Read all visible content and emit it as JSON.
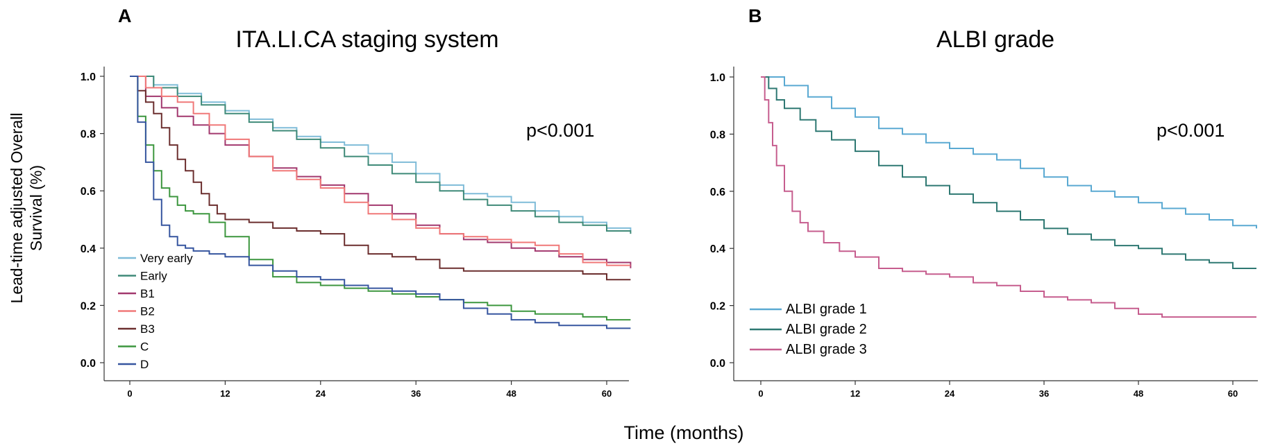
{
  "shared": {
    "xlabel": "Time (months)",
    "ylabel_line1": "Lead-time adjusted Overall",
    "ylabel_line2": "Survival (%)"
  },
  "chart_data": [
    {
      "type": "line",
      "panel_letter": "A",
      "title": "ITA.LI.CA staging system",
      "annotation": "p<0.001",
      "xlim": [
        -2.5,
        63
      ],
      "ylim": [
        -0.05,
        1.05
      ],
      "x_ticks": [
        0,
        12,
        24,
        36,
        48,
        60
      ],
      "y_ticks": [
        "0.0",
        "0.2",
        "0.4",
        "0.6",
        "0.8",
        "1.0"
      ],
      "legend_position": "bottom-left",
      "series": [
        {
          "name": "Very early",
          "color": "#7fbcd8",
          "x": [
            0,
            3,
            6,
            9,
            12,
            15,
            18,
            21,
            24,
            27,
            30,
            33,
            36,
            39,
            42,
            45,
            48,
            51,
            54,
            57,
            60,
            63
          ],
          "y": [
            1.0,
            0.97,
            0.94,
            0.91,
            0.88,
            0.85,
            0.82,
            0.79,
            0.77,
            0.76,
            0.73,
            0.7,
            0.66,
            0.62,
            0.59,
            0.58,
            0.56,
            0.53,
            0.51,
            0.49,
            0.47,
            0.46
          ]
        },
        {
          "name": "Early",
          "color": "#3f8a78",
          "x": [
            0,
            3,
            6,
            9,
            12,
            15,
            18,
            21,
            24,
            27,
            30,
            33,
            36,
            39,
            42,
            45,
            48,
            51,
            54,
            57,
            60,
            63
          ],
          "y": [
            1.0,
            0.96,
            0.93,
            0.9,
            0.87,
            0.84,
            0.81,
            0.78,
            0.75,
            0.72,
            0.69,
            0.66,
            0.63,
            0.6,
            0.57,
            0.55,
            0.53,
            0.51,
            0.49,
            0.48,
            0.46,
            0.45
          ]
        },
        {
          "name": "B1",
          "color": "#a2386e",
          "x": [
            0,
            2,
            4,
            6,
            8,
            10,
            12,
            15,
            18,
            21,
            24,
            27,
            30,
            33,
            36,
            39,
            42,
            45,
            48,
            51,
            54,
            57,
            60,
            63
          ],
          "y": [
            1.0,
            0.93,
            0.89,
            0.86,
            0.83,
            0.8,
            0.76,
            0.72,
            0.68,
            0.65,
            0.62,
            0.59,
            0.55,
            0.52,
            0.48,
            0.45,
            0.43,
            0.42,
            0.4,
            0.39,
            0.37,
            0.36,
            0.35,
            0.33
          ]
        },
        {
          "name": "B2",
          "color": "#f07878",
          "x": [
            0,
            2,
            4,
            6,
            8,
            10,
            12,
            15,
            18,
            21,
            24,
            27,
            30,
            33,
            36,
            39,
            42,
            45,
            48,
            51,
            54,
            57,
            60,
            63
          ],
          "y": [
            1.0,
            0.96,
            0.93,
            0.91,
            0.87,
            0.83,
            0.78,
            0.72,
            0.67,
            0.64,
            0.61,
            0.56,
            0.52,
            0.5,
            0.47,
            0.45,
            0.44,
            0.43,
            0.42,
            0.41,
            0.38,
            0.35,
            0.34,
            0.34
          ]
        },
        {
          "name": "B3",
          "color": "#6b2e2e",
          "x": [
            0,
            1,
            2,
            3,
            4,
            5,
            6,
            7,
            8,
            9,
            10,
            11,
            12,
            15,
            18,
            21,
            24,
            27,
            30,
            33,
            36,
            39,
            42,
            45,
            48,
            51,
            54,
            57,
            60,
            63
          ],
          "y": [
            1.0,
            0.95,
            0.91,
            0.87,
            0.82,
            0.76,
            0.71,
            0.67,
            0.63,
            0.59,
            0.55,
            0.52,
            0.5,
            0.49,
            0.47,
            0.46,
            0.45,
            0.41,
            0.38,
            0.37,
            0.36,
            0.33,
            0.32,
            0.32,
            0.32,
            0.32,
            0.32,
            0.31,
            0.29,
            0.29
          ]
        },
        {
          "name": "C",
          "color": "#3c963e",
          "x": [
            0,
            1,
            2,
            3,
            4,
            5,
            6,
            7,
            8,
            10,
            12,
            15,
            18,
            21,
            24,
            27,
            30,
            33,
            36,
            39,
            42,
            45,
            48,
            51,
            54,
            57,
            60,
            63
          ],
          "y": [
            1.0,
            0.86,
            0.76,
            0.67,
            0.61,
            0.58,
            0.55,
            0.53,
            0.52,
            0.49,
            0.44,
            0.36,
            0.3,
            0.28,
            0.27,
            0.26,
            0.25,
            0.24,
            0.23,
            0.22,
            0.21,
            0.2,
            0.18,
            0.17,
            0.17,
            0.16,
            0.15,
            0.15
          ]
        },
        {
          "name": "D",
          "color": "#36559f",
          "x": [
            0,
            1,
            2,
            3,
            4,
            5,
            6,
            7,
            8,
            10,
            12,
            15,
            18,
            21,
            24,
            27,
            30,
            33,
            36,
            39,
            42,
            45,
            48,
            51,
            54,
            57,
            60,
            63
          ],
          "y": [
            1.0,
            0.84,
            0.7,
            0.57,
            0.48,
            0.44,
            0.41,
            0.4,
            0.39,
            0.38,
            0.37,
            0.34,
            0.32,
            0.3,
            0.29,
            0.27,
            0.26,
            0.25,
            0.24,
            0.22,
            0.19,
            0.17,
            0.15,
            0.14,
            0.13,
            0.13,
            0.12,
            0.12
          ]
        }
      ]
    },
    {
      "type": "line",
      "panel_letter": "B",
      "title": "ALBI grade",
      "annotation": "p<0.001",
      "xlim": [
        -2.5,
        63
      ],
      "ylim": [
        -0.05,
        1.05
      ],
      "x_ticks": [
        0,
        12,
        24,
        36,
        48,
        60
      ],
      "y_ticks": [
        "0.0",
        "0.2",
        "0.4",
        "0.6",
        "0.8",
        "1.0"
      ],
      "legend_position": "bottom-left",
      "series": [
        {
          "name": "ALBI grade 1",
          "color": "#5aa9d2",
          "x": [
            0,
            3,
            6,
            9,
            12,
            15,
            18,
            21,
            24,
            27,
            30,
            33,
            36,
            39,
            42,
            45,
            48,
            51,
            54,
            57,
            60,
            63
          ],
          "y": [
            1.0,
            0.97,
            0.93,
            0.89,
            0.86,
            0.82,
            0.8,
            0.77,
            0.75,
            0.73,
            0.71,
            0.68,
            0.65,
            0.62,
            0.6,
            0.58,
            0.56,
            0.54,
            0.52,
            0.5,
            0.48,
            0.47
          ]
        },
        {
          "name": "ALBI grade 2",
          "color": "#2e7872",
          "x": [
            0,
            1,
            2,
            3,
            5,
            7,
            9,
            12,
            15,
            18,
            21,
            24,
            27,
            30,
            33,
            36,
            39,
            42,
            45,
            48,
            51,
            54,
            57,
            60,
            63
          ],
          "y": [
            1.0,
            0.96,
            0.92,
            0.89,
            0.85,
            0.81,
            0.78,
            0.74,
            0.69,
            0.65,
            0.62,
            0.59,
            0.56,
            0.53,
            0.5,
            0.47,
            0.45,
            0.43,
            0.41,
            0.4,
            0.38,
            0.36,
            0.35,
            0.33,
            0.33
          ]
        },
        {
          "name": "ALBI grade 3",
          "color": "#c65d8e",
          "x": [
            0,
            0.5,
            1,
            1.5,
            2,
            3,
            4,
            5,
            6,
            8,
            10,
            12,
            15,
            18,
            21,
            24,
            27,
            30,
            33,
            36,
            39,
            42,
            45,
            48,
            51,
            54,
            57,
            60,
            63
          ],
          "y": [
            1.0,
            0.92,
            0.84,
            0.76,
            0.69,
            0.6,
            0.53,
            0.49,
            0.46,
            0.42,
            0.39,
            0.37,
            0.33,
            0.32,
            0.31,
            0.3,
            0.28,
            0.27,
            0.25,
            0.23,
            0.22,
            0.21,
            0.19,
            0.17,
            0.16,
            0.16,
            0.16,
            0.16,
            0.16
          ]
        }
      ]
    }
  ]
}
